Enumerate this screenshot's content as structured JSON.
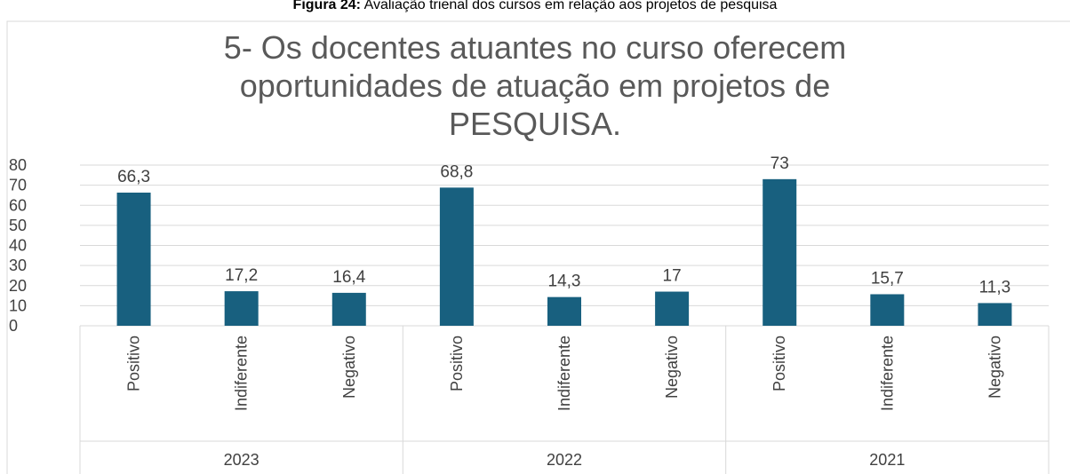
{
  "caption": {
    "label": "Figura 24:",
    "text": "Avaliação trienal dos cursos em relação aos projetos de pesquisa"
  },
  "chart_data": {
    "type": "bar",
    "title": [
      "5- Os docentes atuantes no curso oferecem",
      "oportunidades de atuação em projetos de",
      "PESQUISA."
    ],
    "color": "#18607f",
    "ylim": [
      0,
      80
    ],
    "yticks": [
      0,
      10,
      20,
      30,
      40,
      50,
      60,
      70,
      80
    ],
    "grid": true,
    "groups": [
      {
        "name": "2023",
        "categories": [
          "Positivo",
          "Indiferente",
          "Negativo"
        ],
        "values": [
          66.3,
          17.2,
          16.4
        ],
        "value_labels": [
          "66,3",
          "17,2",
          "16,4"
        ]
      },
      {
        "name": "2022",
        "categories": [
          "Positivo",
          "Indiferente",
          "Negativo"
        ],
        "values": [
          68.8,
          14.3,
          17
        ],
        "value_labels": [
          "68,8",
          "14,3",
          "17"
        ]
      },
      {
        "name": "2021",
        "categories": [
          "Positivo",
          "Indiferente",
          "Negativo"
        ],
        "values": [
          73,
          15.7,
          11.3
        ],
        "value_labels": [
          "73",
          "15,7",
          "11,3"
        ]
      }
    ]
  }
}
